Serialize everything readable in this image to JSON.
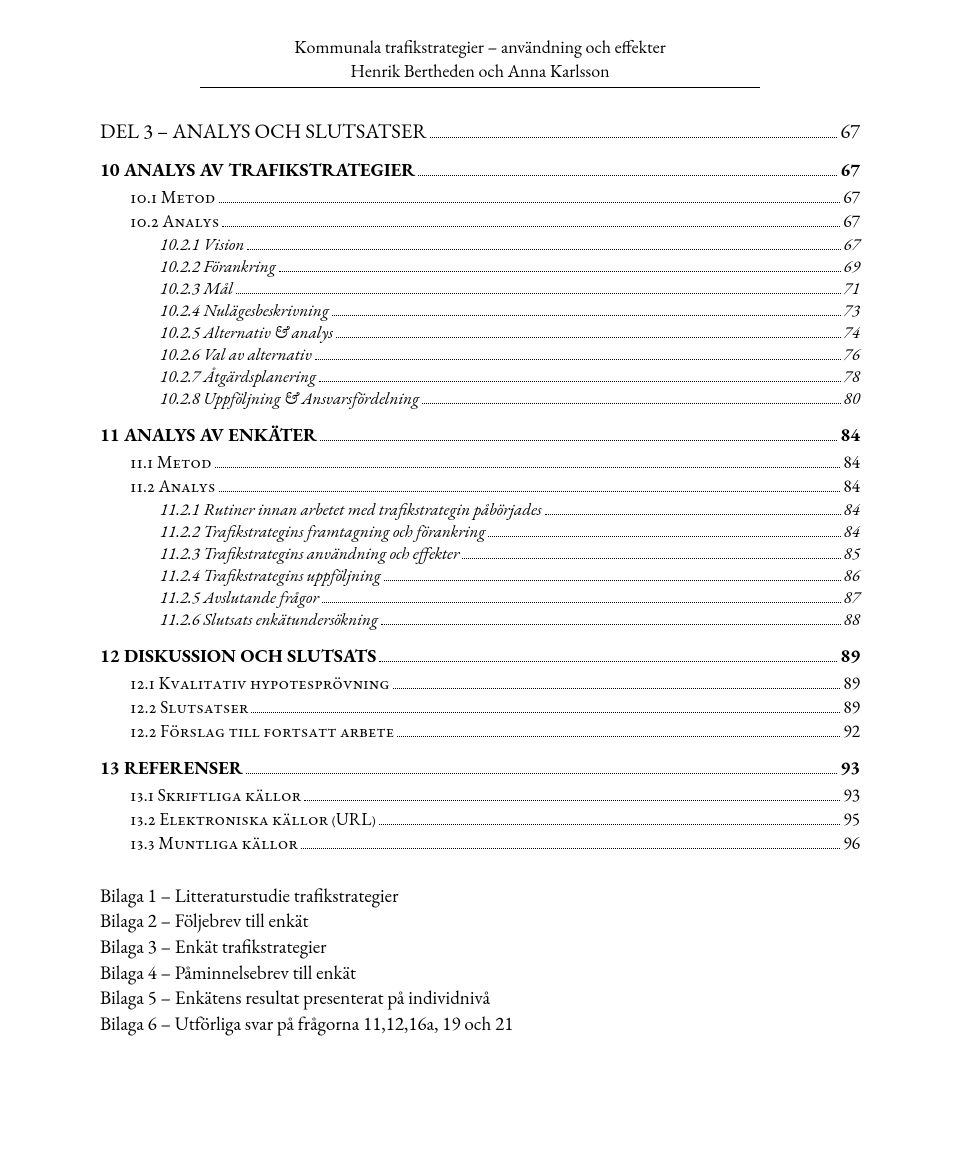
{
  "header": {
    "title": "Kommunala trafikstrategier – användning och effekter",
    "authors": "Henrik Bertheden och Anna Karlsson"
  },
  "toc": [
    {
      "level": 0,
      "label": "DEL 3 – ANALYS OCH SLUTSATSER",
      "page": "67"
    },
    {
      "level": 1,
      "label": "10 ANALYS AV TRAFIKSTRATEGIER",
      "page": "67"
    },
    {
      "level": 2,
      "label": "10.1 Metod",
      "page": "67"
    },
    {
      "level": 2,
      "label": "10.2 Analys",
      "page": "67"
    },
    {
      "level": 3,
      "label": "10.2.1 Vision",
      "page": "67"
    },
    {
      "level": 3,
      "label": "10.2.2 Förankring",
      "page": "69"
    },
    {
      "level": 3,
      "label": "10.2.3 Mål",
      "page": "71"
    },
    {
      "level": 3,
      "label": "10.2.4 Nulägesbeskrivning",
      "page": "73"
    },
    {
      "level": 3,
      "label": "10.2.5 Alternativ & analys",
      "page": "74"
    },
    {
      "level": 3,
      "label": "10.2.6 Val av alternativ",
      "page": "76"
    },
    {
      "level": 3,
      "label": "10.2.7 Åtgärdsplanering",
      "page": "78"
    },
    {
      "level": 3,
      "label": "10.2.8 Uppföljning & Ansvarsfördelning",
      "page": "80"
    },
    {
      "level": 1,
      "label": "11 ANALYS AV ENKÄTER",
      "page": "84"
    },
    {
      "level": 2,
      "label": "11.1 Metod",
      "page": "84"
    },
    {
      "level": 2,
      "label": "11.2 Analys",
      "page": "84"
    },
    {
      "level": 3,
      "label": "11.2.1 Rutiner innan arbetet med trafikstrategin påbörjades",
      "page": "84"
    },
    {
      "level": 3,
      "label": "11.2.2 Trafikstrategins framtagning och förankring",
      "page": "84"
    },
    {
      "level": 3,
      "label": "11.2.3 Trafikstrategins användning och effekter",
      "page": "85"
    },
    {
      "level": 3,
      "label": "11.2.4 Trafikstrategins uppföljning",
      "page": "86"
    },
    {
      "level": 3,
      "label": "11.2.5 Avslutande frågor",
      "page": "87"
    },
    {
      "level": 3,
      "label": "11.2.6 Slutsats enkätundersökning",
      "page": "88"
    },
    {
      "level": 1,
      "label": "12 DISKUSSION OCH SLUTSATS",
      "page": "89"
    },
    {
      "level": 2,
      "label": "12.1 Kvalitativ hypotesprövning",
      "page": "89"
    },
    {
      "level": 2,
      "label": "12.2 Slutsatser",
      "page": "89"
    },
    {
      "level": 2,
      "label": "12.2 Förslag till fortsatt arbete",
      "page": "92"
    },
    {
      "level": 1,
      "label": "13 REFERENSER",
      "page": "93"
    },
    {
      "level": 2,
      "label": "13.1 Skriftliga källor",
      "page": "93"
    },
    {
      "level": 2,
      "label": "13.2 Elektroniska källor (URL)",
      "page": "95"
    },
    {
      "level": 2,
      "label": "13.3 Muntliga källor",
      "page": "96"
    }
  ],
  "appendix": [
    "Bilaga 1 – Litteraturstudie trafikstrategier",
    "Bilaga 2 – Följebrev till enkät",
    "Bilaga 3 – Enkät trafikstrategier",
    "Bilaga 4 – Påminnelsebrev till enkät",
    "Bilaga 5 – Enkätens resultat presenterat på individnivå",
    "Bilaga 6 – Utförliga svar på frågorna 11,12,16a, 19 och 21"
  ]
}
